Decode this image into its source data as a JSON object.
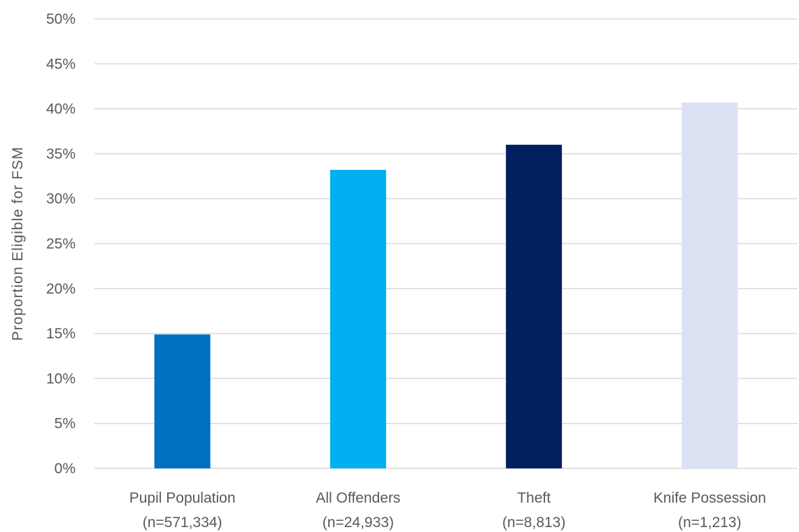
{
  "chart_data": {
    "type": "bar",
    "title": "",
    "xlabel": "",
    "ylabel": "Proportion Eligible for FSM",
    "ylim": [
      0,
      50
    ],
    "y_tick_step": 5,
    "y_tick_suffix": "%",
    "grid": true,
    "legend": "none",
    "categories": [
      {
        "line1": "Pupil Population",
        "line2": "(n=571,334)"
      },
      {
        "line1": "All Offenders",
        "line2": "(n=24,933)"
      },
      {
        "line1": "Theft",
        "line2": "(n=8,813)"
      },
      {
        "line1": "Knife Possession",
        "line2": "(n=1,213)"
      }
    ],
    "values": [
      14.9,
      33.2,
      36.0,
      40.7
    ],
    "colors": [
      "#0070c0",
      "#00b0f0",
      "#002060",
      "#d9e1f2"
    ]
  }
}
